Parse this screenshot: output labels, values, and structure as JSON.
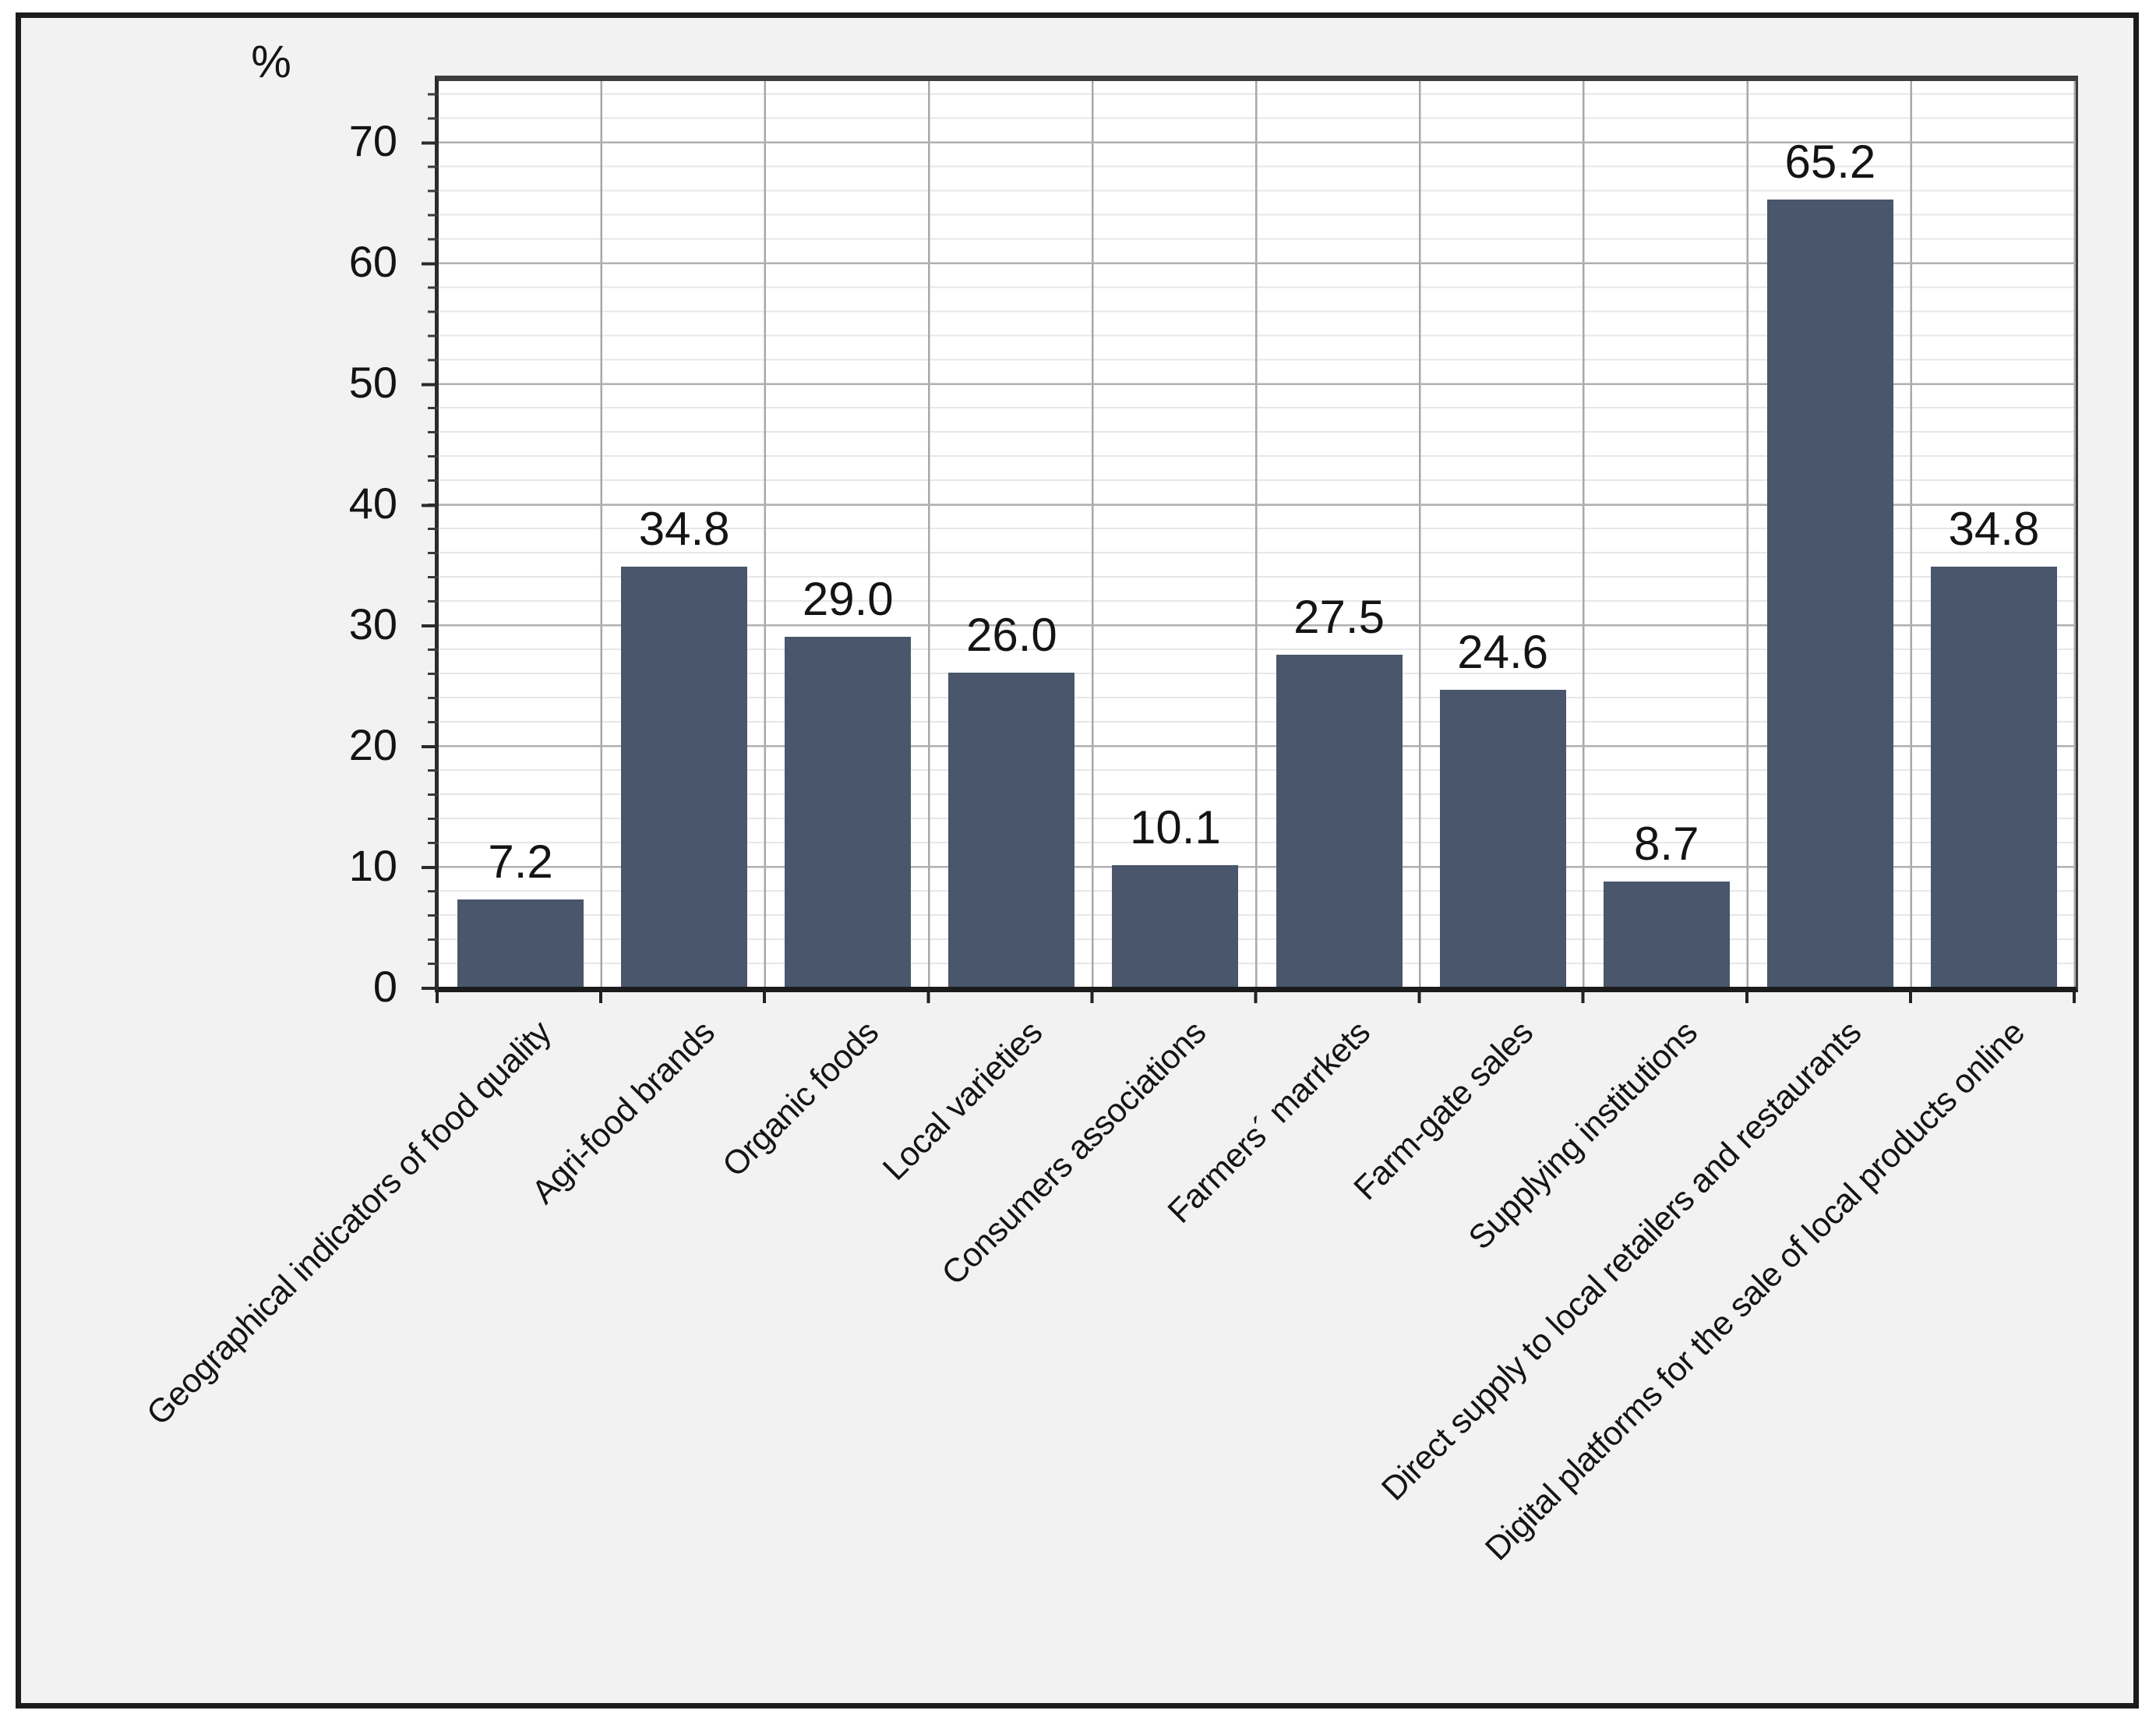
{
  "chart_data": {
    "type": "bar",
    "title": "",
    "xlabel": "",
    "ylabel": "%",
    "ylim": [
      0,
      75
    ],
    "yticks": [
      "0",
      "10",
      "20",
      "30",
      "40",
      "50",
      "60",
      "70"
    ],
    "ytick_values": [
      0,
      10,
      20,
      30,
      40,
      50,
      60,
      70
    ],
    "minor_grid_step": 2,
    "major_grid_step": 10,
    "grid": "horizontal major + minor gridlines, vertical category separator lines",
    "legend_position": "none",
    "categories": [
      "Geographical indicators of food quality",
      "Agri-food brands",
      "Organic foods",
      "Local varieties",
      "Consumers associations",
      "Farmers´ marrkets",
      "Farm-gate sales",
      "Supplying institutions",
      "Direct supply to local retailers and restaurants",
      "Digital platforms for the sale of local products online"
    ],
    "values": [
      7.2,
      34.8,
      29.0,
      26.0,
      10.1,
      27.5,
      24.6,
      8.7,
      65.2,
      34.8
    ],
    "value_labels": [
      "7.2",
      "34.8",
      "29.0",
      "26.0",
      "10.1",
      "27.5",
      "24.6",
      "8.7",
      "65.2",
      "34.8"
    ],
    "bar_color": "#49566c",
    "plot_background": "#ffffff",
    "panel_background": "#f2f2f2"
  }
}
